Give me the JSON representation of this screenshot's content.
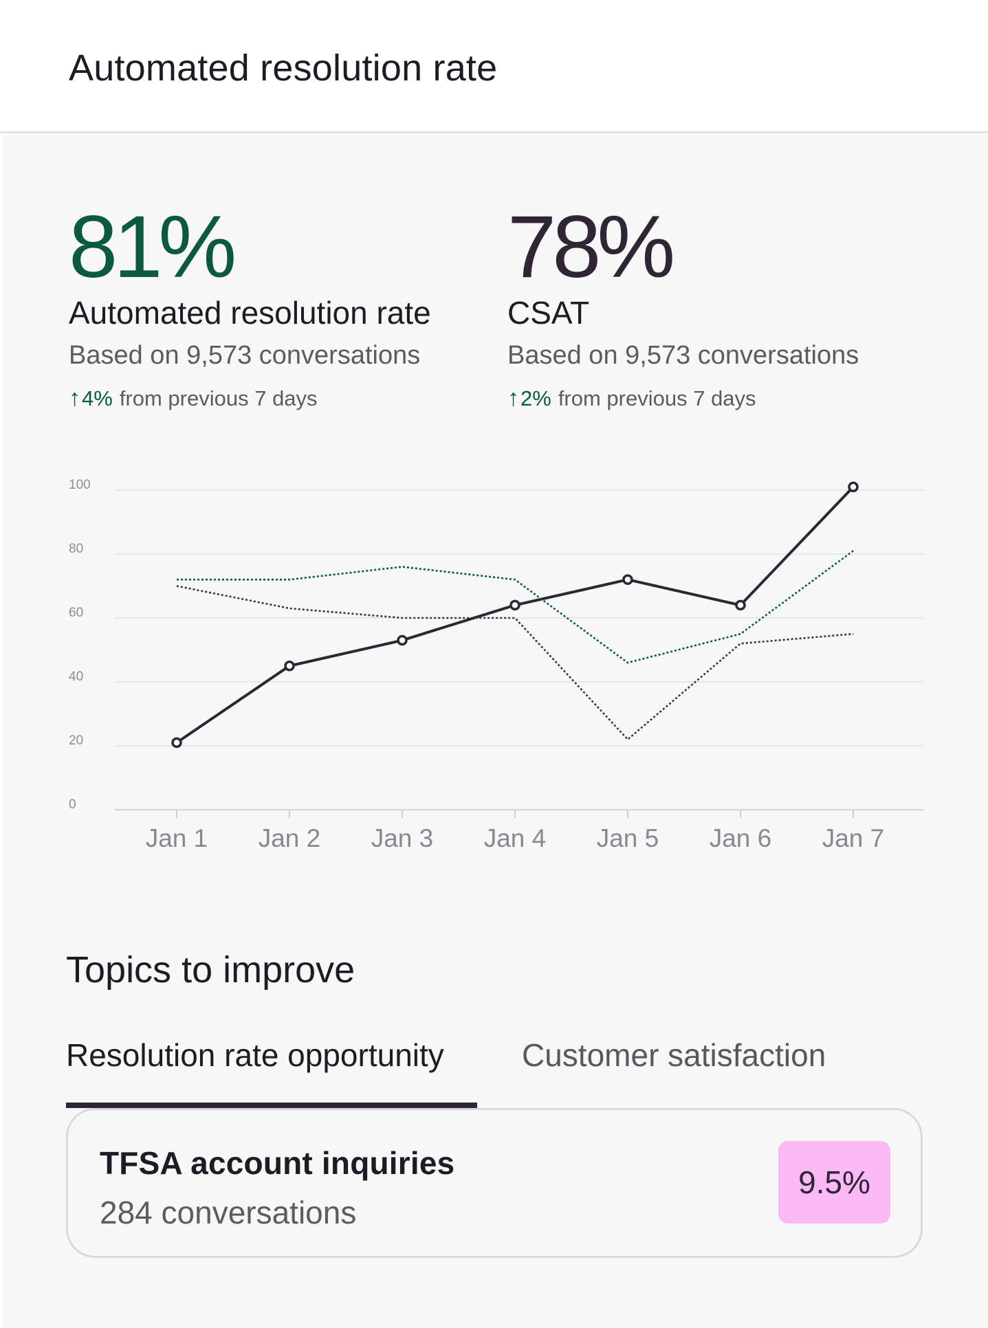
{
  "header": {
    "title": "Automated resolution rate"
  },
  "metrics": [
    {
      "value": "81%",
      "label": "Automated resolution rate",
      "sub": "Based on 9,573 conversations",
      "change_arrow": "↑",
      "change_pct": "4%",
      "change_text": "from previous 7 days",
      "color": "#0b5a3e"
    },
    {
      "value": "78%",
      "label": "CSAT",
      "sub": "Based on 9,573 conversations",
      "change_arrow": "↑",
      "change_pct": "2%",
      "change_text": "from previous 7 days",
      "color": "#2f2534"
    }
  ],
  "chart_data": {
    "type": "line",
    "categories": [
      "Jan 1",
      "Jan 2",
      "Jan 3",
      "Jan 4",
      "Jan 5",
      "Jan 6",
      "Jan 7"
    ],
    "ylim": [
      0,
      100
    ],
    "yticks": [
      "0",
      "20",
      "40",
      "60",
      "80",
      "100"
    ],
    "grid": true,
    "series": [
      {
        "values": [
          21,
          45,
          53,
          64,
          72,
          64,
          101
        ],
        "style": "solid",
        "markers": true,
        "color": "#2f2534"
      },
      {
        "values": [
          72,
          72,
          76,
          72,
          46,
          55,
          81
        ],
        "style": "dotted",
        "markers": false,
        "color": "#0b5a3e"
      },
      {
        "values": [
          70,
          63,
          60,
          60,
          22,
          52,
          55
        ],
        "style": "dotted",
        "markers": false,
        "color": "#3a333f"
      }
    ]
  },
  "topics": {
    "title": "Topics to improve",
    "tabs": [
      {
        "label": "Resolution rate opportunity",
        "active": true
      },
      {
        "label": "Customer satisfaction",
        "active": false
      }
    ],
    "card": {
      "title": "TFSA account inquiries",
      "sub": "284 conversations",
      "badge": "9.5%"
    }
  }
}
